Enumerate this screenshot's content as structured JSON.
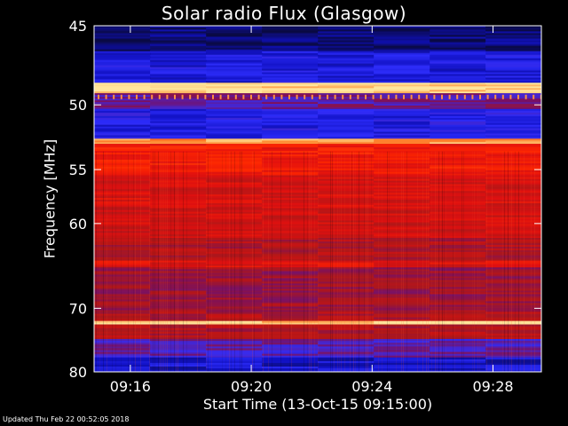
{
  "chart_data": {
    "type": "heatmap",
    "title": "Solar radio Flux (Glasgow)",
    "ylabel": "Frequency [MHz]",
    "xlabel": "Start Time (13-Oct-15 09:15:00)",
    "x_ticks": [
      "09:16",
      "09:20",
      "09:24",
      "09:28"
    ],
    "x_tick_minutes": [
      16,
      20,
      24,
      28
    ],
    "xlim_minutes": [
      14.8,
      29.6
    ],
    "y_ticks": [
      45,
      50,
      55,
      60,
      70,
      80
    ],
    "ylim": [
      45,
      80
    ],
    "y_scale": "reciprocal",
    "colormap": [
      "#0a0a3a",
      "#1010c0",
      "#3030ff",
      "#7a1060",
      "#b01818",
      "#e01010",
      "#ff2a00",
      "#ff8a30",
      "#ffe8a0"
    ],
    "bands": [
      {
        "from": 44.5,
        "to": 46.5,
        "level": 0.05
      },
      {
        "from": 46.5,
        "to": 48.5,
        "level": 0.18
      },
      {
        "from": 48.5,
        "to": 49.2,
        "level": 0.98
      },
      {
        "from": 49.2,
        "to": 50.3,
        "level": 0.35
      },
      {
        "from": 50.3,
        "to": 52.5,
        "level": 0.2
      },
      {
        "from": 52.5,
        "to": 52.9,
        "level": 0.9
      },
      {
        "from": 52.9,
        "to": 55.5,
        "level": 0.68
      },
      {
        "from": 55.5,
        "to": 58.5,
        "level": 0.6
      },
      {
        "from": 58.5,
        "to": 61.5,
        "level": 0.58
      },
      {
        "from": 61.5,
        "to": 64.0,
        "level": 0.5
      },
      {
        "from": 64.0,
        "to": 64.8,
        "level": 0.62
      },
      {
        "from": 64.8,
        "to": 70.5,
        "level": 0.45
      },
      {
        "from": 70.5,
        "to": 71.8,
        "level": 0.5
      },
      {
        "from": 71.8,
        "to": 72.3,
        "level": 0.97
      },
      {
        "from": 72.3,
        "to": 74.5,
        "level": 0.5
      },
      {
        "from": 74.5,
        "to": 77.5,
        "level": 0.32
      },
      {
        "from": 77.5,
        "to": 81.0,
        "level": 0.15
      }
    ]
  },
  "footer": {
    "updated": "Updated Thu Feb 22 00:52:05 2018"
  }
}
